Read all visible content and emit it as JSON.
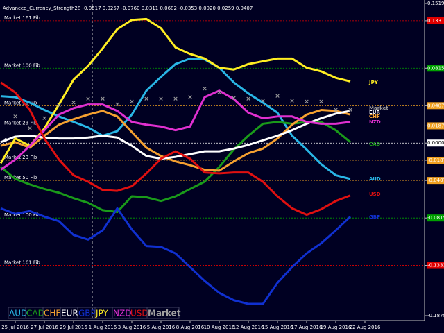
{
  "chart_data": {
    "type": "line",
    "header": "Advanced_Currency_Strength28 -0.0517 0.0257 -0.0760 0.0311 0.0682 -0.0353 0.0020 0.0259 0.0407",
    "categories": [
      null,
      "25 Jul 2016",
      null,
      "27 Jul 2016",
      null,
      "29 Jul 2016",
      null,
      "1 Aug 2016",
      null,
      "3 Aug 2016",
      null,
      "5 Aug 2016",
      null,
      "8 Aug 2016",
      null,
      "10 Aug 2016",
      null,
      "12 Aug 2016",
      null,
      "15 Aug 2016",
      null,
      "17 Aug 2016",
      null,
      "19 Aug 2016",
      null,
      "22 Aug 2016"
    ],
    "ylim": [
      -0.1878,
      0.1519
    ],
    "yticks": [
      0.1519,
      0.1331,
      0.0815,
      0.0407,
      0.0187,
      {
        "value": 0,
        "label": "0.0000"
      },
      -0.0187,
      -0.0407,
      -0.0815,
      -0.1331,
      -0.1878
    ],
    "levels": [
      {
        "value": 0.1331,
        "label": "Market 161 Fib",
        "color": "#e00000"
      },
      {
        "value": 0.0815,
        "label": "Market 100 Fib",
        "color": "#00a000"
      },
      {
        "value": 0.0407,
        "label": "Market 50 Fib",
        "color": "#f0a020"
      },
      {
        "value": 0.0187,
        "label": "Market 23 Fib",
        "color": "#f0a020"
      },
      {
        "value": 0,
        "label": "0",
        "color": "#ffffff"
      },
      {
        "value": -0.0187,
        "label": "Market 23 Fib",
        "color": "#f0a020"
      },
      {
        "value": -0.0407,
        "label": "Market 50 Fib",
        "color": "#f0a020"
      },
      {
        "value": -0.0815,
        "label": "Market 100 Fib",
        "color": "#00a000"
      },
      {
        "value": -0.1331,
        "label": "Market 161 Fib",
        "color": "#e00000"
      }
    ],
    "series": [
      {
        "name": "AUD",
        "color": "#29b6e6",
        "values": [
          0.051,
          0.05,
          0.044,
          0.036,
          0.029,
          0.023,
          0.017,
          0.008,
          0.013,
          0.031,
          0.057,
          0.072,
          0.086,
          0.092,
          0.091,
          0.082,
          0.066,
          0.054,
          0.044,
          0.033,
          0.008,
          -0.007,
          -0.023,
          -0.035,
          -0.039,
          null
        ]
      },
      {
        "name": "CAD",
        "color": "#1a9a1a",
        "values": [
          -0.026,
          -0.039,
          -0.045,
          -0.05,
          -0.054,
          -0.06,
          -0.065,
          -0.073,
          -0.075,
          -0.058,
          -0.059,
          -0.063,
          -0.058,
          -0.05,
          -0.042,
          -0.026,
          -0.007,
          0.008,
          0.021,
          0.023,
          0.021,
          0.023,
          0.023,
          0.014,
          0.001,
          null
        ]
      },
      {
        "name": "CHF",
        "color": "#f5a030",
        "values": [
          -0.003,
          0.001,
          -0.005,
          0.008,
          0.02,
          0.026,
          0.031,
          0.035,
          0.029,
          0.012,
          -0.005,
          -0.014,
          -0.02,
          -0.024,
          -0.029,
          -0.03,
          -0.02,
          -0.011,
          -0.006,
          0.005,
          0.02,
          0.031,
          0.036,
          0.035,
          0.031,
          null
        ]
      },
      {
        "name": "EUR",
        "color": "#ffffff",
        "values": [
          0.001,
          0.007,
          0.008,
          0.006,
          0.005,
          0.005,
          0.006,
          0.008,
          0.006,
          -0.003,
          -0.014,
          -0.017,
          -0.015,
          -0.012,
          -0.009,
          -0.009,
          -0.006,
          -0.002,
          0.003,
          0.008,
          0.014,
          0.021,
          0.027,
          0.032,
          0.035,
          null
        ]
      },
      {
        "name": "GBP",
        "color": "#1030d0",
        "values": [
          -0.071,
          -0.077,
          -0.074,
          -0.08,
          -0.085,
          -0.1,
          -0.105,
          -0.095,
          -0.071,
          -0.094,
          -0.112,
          -0.113,
          -0.12,
          -0.135,
          -0.15,
          -0.163,
          -0.171,
          -0.175,
          -0.175,
          -0.152,
          -0.135,
          -0.12,
          -0.109,
          -0.095,
          -0.08,
          null
        ]
      },
      {
        "name": "JPY",
        "color": "#ffee22",
        "values": [
          -0.022,
          0.005,
          -0.003,
          0.016,
          0.042,
          0.069,
          0.084,
          0.103,
          0.124,
          0.134,
          0.135,
          0.125,
          0.104,
          0.097,
          0.092,
          0.082,
          0.08,
          0.086,
          0.089,
          0.092,
          0.092,
          0.082,
          0.078,
          0.071,
          0.067,
          null
        ]
      },
      {
        "name": "NZD",
        "color": "#e030d0",
        "values": [
          -0.029,
          -0.018,
          -0.003,
          0.014,
          0.031,
          0.038,
          0.042,
          0.042,
          0.035,
          0.023,
          0.02,
          0.018,
          0.014,
          0.018,
          0.05,
          0.057,
          0.048,
          0.033,
          0.027,
          0.029,
          0.029,
          0.023,
          0.021,
          0.021,
          0.023,
          null
        ]
      },
      {
        "name": "USD",
        "color": "#e01010",
        "values": [
          0.066,
          0.055,
          0.036,
          0.005,
          -0.018,
          -0.035,
          -0.042,
          -0.051,
          -0.052,
          -0.047,
          -0.033,
          -0.017,
          -0.009,
          -0.017,
          -0.032,
          -0.033,
          -0.032,
          -0.032,
          -0.042,
          -0.058,
          -0.071,
          -0.078,
          -0.072,
          -0.063,
          -0.057,
          null
        ]
      },
      {
        "name": "Market",
        "color": "#a0a0a0",
        "marker": "x",
        "values": [
          null,
          0.029,
          0.016,
          0.027,
          0.041,
          0.044,
          0.048,
          0.048,
          0.042,
          0.045,
          0.048,
          0.048,
          0.048,
          0.05,
          0.059,
          0.055,
          0.049,
          0.048,
          0.046,
          0.051,
          0.046,
          0.045,
          0.045,
          0.036,
          0.036,
          null
        ]
      }
    ]
  }
}
